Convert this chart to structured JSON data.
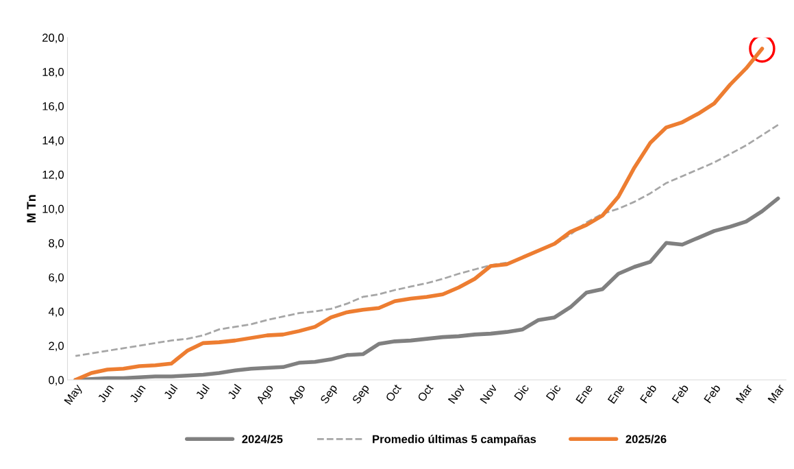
{
  "chart_data": {
    "type": "line",
    "ylabel": "M Tn",
    "categories": [
      "May",
      null,
      "Jun",
      null,
      "Jun",
      null,
      "Jul",
      null,
      "Jul",
      null,
      "Jul",
      null,
      "Ago",
      null,
      "Ago",
      null,
      "Sep",
      null,
      "Sep",
      null,
      "Oct",
      null,
      "Oct",
      null,
      "Nov",
      null,
      "Nov",
      null,
      "Dic",
      null,
      "Dic",
      null,
      "Ene",
      null,
      "Ene",
      null,
      "Feb",
      null,
      "Feb",
      null,
      "Feb",
      null,
      "Mar",
      null,
      "Mar"
    ],
    "series": [
      {
        "name": "2024/25",
        "color": "#808080",
        "line_style": "solid",
        "values": [
          0.0,
          0.05,
          0.1,
          0.1,
          0.15,
          0.2,
          0.2,
          0.25,
          0.3,
          0.4,
          0.55,
          0.65,
          0.7,
          0.75,
          1.0,
          1.05,
          1.2,
          1.45,
          1.5,
          2.1,
          2.25,
          2.3,
          2.4,
          2.5,
          2.55,
          2.65,
          2.7,
          2.8,
          2.95,
          3.5,
          3.65,
          4.25,
          5.1,
          5.3,
          6.2,
          6.6,
          6.9,
          8.0,
          7.9,
          8.3,
          8.7,
          8.95,
          9.25,
          9.85,
          10.6
        ]
      },
      {
        "name": "Promedio últimas 5 campañas",
        "color": "#a6a6a6",
        "line_style": "dashed",
        "values": [
          1.4,
          1.55,
          1.7,
          1.85,
          2.0,
          2.15,
          2.3,
          2.4,
          2.6,
          2.95,
          3.1,
          3.25,
          3.5,
          3.7,
          3.9,
          4.0,
          4.15,
          4.45,
          4.85,
          5.0,
          5.25,
          5.45,
          5.65,
          5.9,
          6.2,
          6.45,
          6.7,
          6.85,
          null,
          null,
          7.9,
          8.5,
          9.2,
          9.7,
          10.0,
          10.4,
          10.9,
          11.5,
          11.9,
          12.3,
          12.7,
          13.2,
          13.7,
          14.3,
          14.9
        ]
      },
      {
        "name": "2025/26",
        "color": "#ed7d31",
        "line_style": "solid",
        "values": [
          0.0,
          0.4,
          0.6,
          0.65,
          0.8,
          0.85,
          0.95,
          1.7,
          2.15,
          2.2,
          2.3,
          2.45,
          2.6,
          2.65,
          2.85,
          3.1,
          3.65,
          3.95,
          4.1,
          4.2,
          4.6,
          4.75,
          4.85,
          5.0,
          5.4,
          5.9,
          6.65,
          6.75,
          7.15,
          7.55,
          7.95,
          8.65,
          9.05,
          9.6,
          10.7,
          12.4,
          13.85,
          14.75,
          15.05,
          15.55,
          16.15,
          17.25,
          18.2,
          19.35,
          null
        ]
      }
    ],
    "ylim": [
      0,
      20
    ],
    "yticks": [
      {
        "value": 0,
        "label": "0,0"
      },
      {
        "value": 2,
        "label": "2,0"
      },
      {
        "value": 4,
        "label": "4,0"
      },
      {
        "value": 6,
        "label": "6,0"
      },
      {
        "value": 8,
        "label": "8,0"
      },
      {
        "value": 10,
        "label": "10,0"
      },
      {
        "value": 12,
        "label": "12,0"
      },
      {
        "value": 14,
        "label": "14,0"
      },
      {
        "value": 16,
        "label": "16,0"
      },
      {
        "value": 18,
        "label": "18,0"
      },
      {
        "value": 20,
        "label": "20,0"
      }
    ],
    "grid": false,
    "legend": "bottom",
    "marker": "none"
  }
}
